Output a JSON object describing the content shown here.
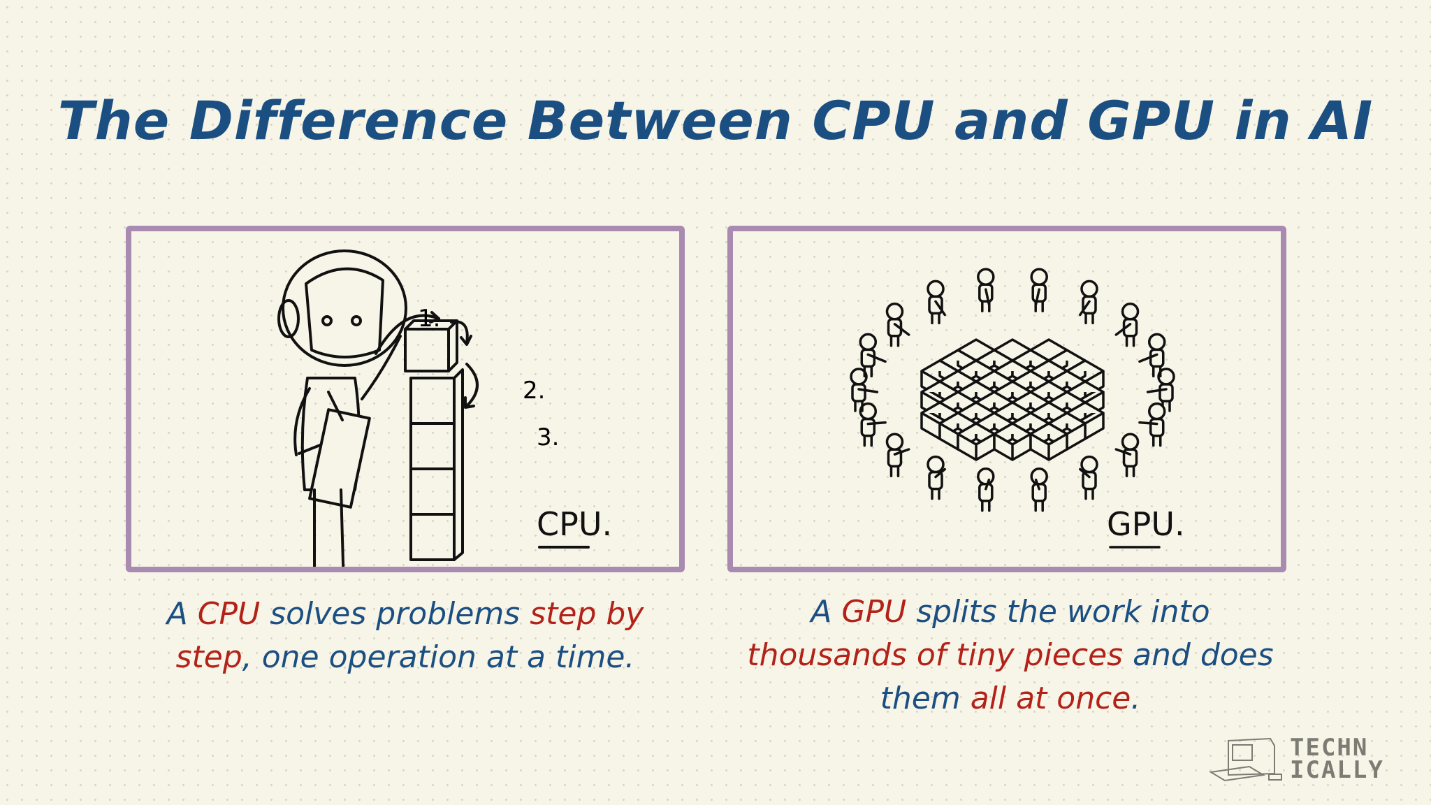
{
  "title": "The Difference Between CPU and GPU in AI",
  "colors": {
    "title": "#1b4f82",
    "highlight": "#b32218",
    "frame": "#a98bb2",
    "background": "#f7f4e8"
  },
  "cpu_panel": {
    "label": "CPU.",
    "steps": [
      "1.",
      "2.",
      "3."
    ]
  },
  "gpu_panel": {
    "label": "GPU."
  },
  "cpu_caption": [
    {
      "text": "A ",
      "hl": false
    },
    {
      "text": "CPU",
      "hl": true
    },
    {
      "text": " solves problems ",
      "hl": false
    },
    {
      "text": "step by step",
      "hl": true
    },
    {
      "text": ", one operation at a time.",
      "hl": false
    }
  ],
  "gpu_caption": [
    {
      "text": "A ",
      "hl": false
    },
    {
      "text": "GPU",
      "hl": true
    },
    {
      "text": " splits the work into ",
      "hl": false
    },
    {
      "text": "thousands of tiny pieces",
      "hl": true
    },
    {
      "text": " and does them ",
      "hl": false
    },
    {
      "text": "all at once",
      "hl": true
    },
    {
      "text": ".",
      "hl": false
    }
  ],
  "logo": {
    "line1": "TECHN",
    "line2": "ICALLY",
    "icon": "retro-computer-icon"
  }
}
